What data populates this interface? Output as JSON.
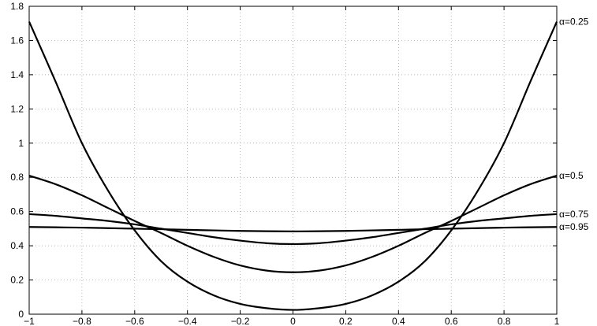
{
  "chart_data": {
    "type": "line",
    "title": "",
    "xlabel": "",
    "ylabel": "",
    "xlim": [
      -1,
      1
    ],
    "ylim": [
      0,
      1.8
    ],
    "grid": true,
    "x_ticks": [
      -1,
      -0.8,
      -0.6,
      -0.4,
      -0.2,
      0,
      0.2,
      0.4,
      0.6,
      0.8,
      1
    ],
    "x_tick_labels": [
      "−1",
      "−0.8",
      "−0.6",
      "−0.4",
      "−0.2",
      "0",
      "0.2",
      "0.4",
      "0.6",
      "0.8",
      "1"
    ],
    "y_ticks": [
      0,
      0.2,
      0.4,
      0.6,
      0.8,
      1,
      1.2,
      1.4,
      1.6,
      1.8
    ],
    "y_tick_labels": [
      "0",
      "0.2",
      "0.4",
      "0.6",
      "0.8",
      "1",
      "1.2",
      "1.4",
      "1.6",
      "1.8"
    ],
    "line_color": "#000000",
    "series": [
      {
        "name": "α=0.25",
        "label": "α=0.25",
        "x": [
          -1,
          -0.9,
          -0.8,
          -0.7,
          -0.6,
          -0.5,
          -0.4,
          -0.3,
          -0.2,
          -0.1,
          0,
          0.1,
          0.2,
          0.3,
          0.4,
          0.5,
          0.6,
          0.7,
          0.8,
          0.9,
          1
        ],
        "values": [
          1.71,
          1.36,
          1.0,
          0.72,
          0.49,
          0.31,
          0.19,
          0.11,
          0.06,
          0.035,
          0.025,
          0.035,
          0.06,
          0.11,
          0.19,
          0.31,
          0.49,
          0.72,
          1.0,
          1.36,
          1.71
        ]
      },
      {
        "name": "α=0.5",
        "label": "α=0.5",
        "x": [
          -1,
          -0.9,
          -0.8,
          -0.7,
          -0.6,
          -0.5,
          -0.4,
          -0.3,
          -0.2,
          -0.1,
          0,
          0.1,
          0.2,
          0.3,
          0.4,
          0.5,
          0.6,
          0.7,
          0.8,
          0.9,
          1
        ],
        "values": [
          0.81,
          0.76,
          0.695,
          0.62,
          0.545,
          0.475,
          0.4,
          0.335,
          0.285,
          0.255,
          0.245,
          0.255,
          0.285,
          0.335,
          0.4,
          0.475,
          0.545,
          0.62,
          0.695,
          0.76,
          0.81
        ]
      },
      {
        "name": "α=0.75",
        "label": "α=0.75",
        "x": [
          -1,
          -0.9,
          -0.8,
          -0.7,
          -0.6,
          -0.5,
          -0.4,
          -0.3,
          -0.2,
          -0.1,
          0,
          0.1,
          0.2,
          0.3,
          0.4,
          0.5,
          0.6,
          0.7,
          0.8,
          0.9,
          1
        ],
        "values": [
          0.585,
          0.575,
          0.56,
          0.545,
          0.525,
          0.5,
          0.475,
          0.45,
          0.43,
          0.415,
          0.41,
          0.415,
          0.43,
          0.45,
          0.475,
          0.5,
          0.525,
          0.545,
          0.56,
          0.575,
          0.585
        ]
      },
      {
        "name": "α=0.95",
        "label": "α=0.95",
        "x": [
          -1,
          -0.9,
          -0.8,
          -0.7,
          -0.6,
          -0.5,
          -0.4,
          -0.3,
          -0.2,
          -0.1,
          0,
          0.1,
          0.2,
          0.3,
          0.4,
          0.5,
          0.6,
          0.7,
          0.8,
          0.9,
          1
        ],
        "values": [
          0.51,
          0.508,
          0.506,
          0.503,
          0.5,
          0.497,
          0.493,
          0.49,
          0.487,
          0.485,
          0.484,
          0.485,
          0.487,
          0.49,
          0.493,
          0.497,
          0.5,
          0.503,
          0.506,
          0.508,
          0.51
        ]
      }
    ]
  }
}
